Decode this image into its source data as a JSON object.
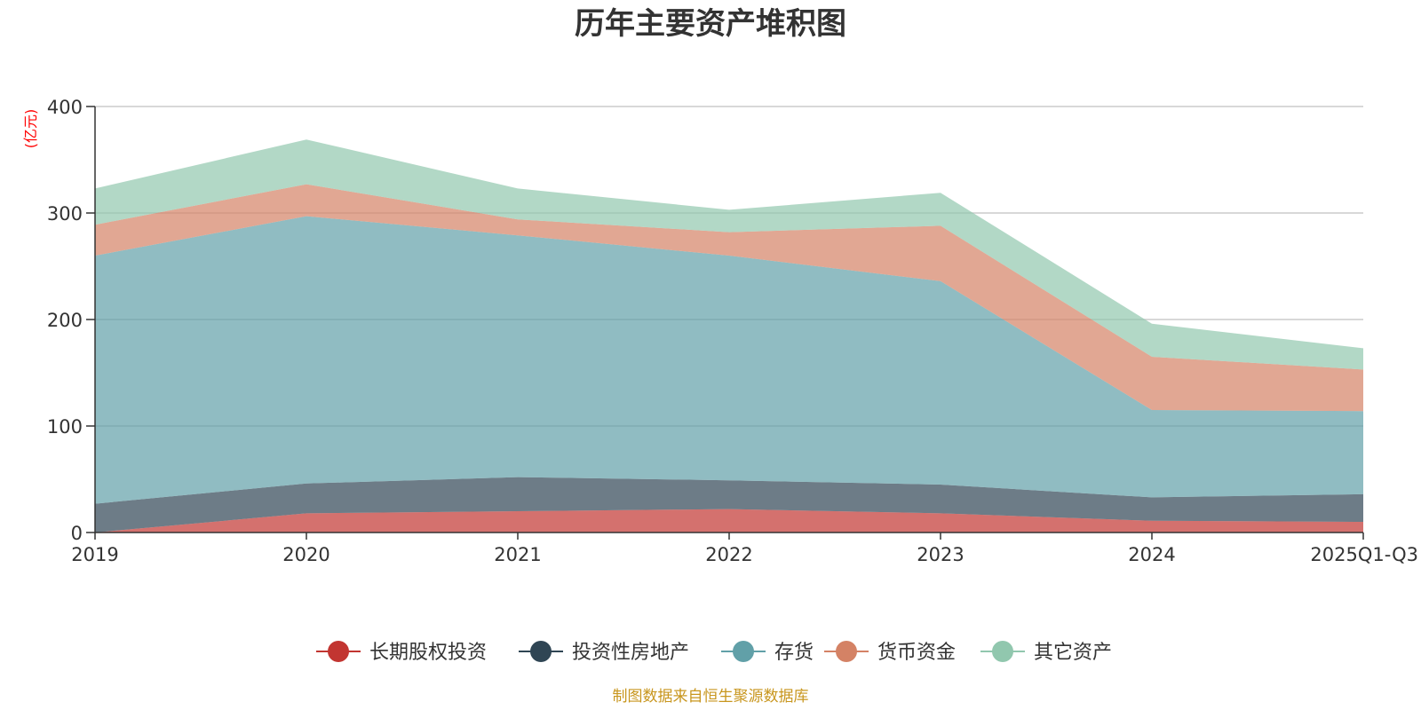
{
  "chart_data": {
    "type": "area",
    "stacked": true,
    "title": "历年主要资产堆积图",
    "unit_label": "(亿元)",
    "categories": [
      "2019",
      "2020",
      "2021",
      "2022",
      "2023",
      "2024",
      "2025Q1-Q3"
    ],
    "y_ticks": [
      "0",
      "100",
      "200",
      "300",
      "400"
    ],
    "ylim": [
      0,
      400
    ],
    "grid": true,
    "legend_position": "bottom",
    "series": [
      {
        "name": "长期股权投资",
        "color": "#c23531",
        "values": [
          0,
          18,
          20,
          22,
          18,
          11,
          10
        ]
      },
      {
        "name": "投资性房地产",
        "color": "#2f4554",
        "values": [
          27,
          28,
          32,
          27,
          27,
          22,
          26
        ]
      },
      {
        "name": "存货",
        "color": "#61a0a8",
        "values": [
          233,
          251,
          227,
          211,
          191,
          82,
          78
        ]
      },
      {
        "name": "货币资金",
        "color": "#d48265",
        "values": [
          29,
          30,
          15,
          22,
          52,
          50,
          39
        ]
      },
      {
        "name": "其它资产",
        "color": "#91c7ae",
        "values": [
          34,
          42,
          29,
          21,
          31,
          31,
          20
        ]
      }
    ],
    "source_note": "制图数据来自恒生聚源数据库"
  }
}
